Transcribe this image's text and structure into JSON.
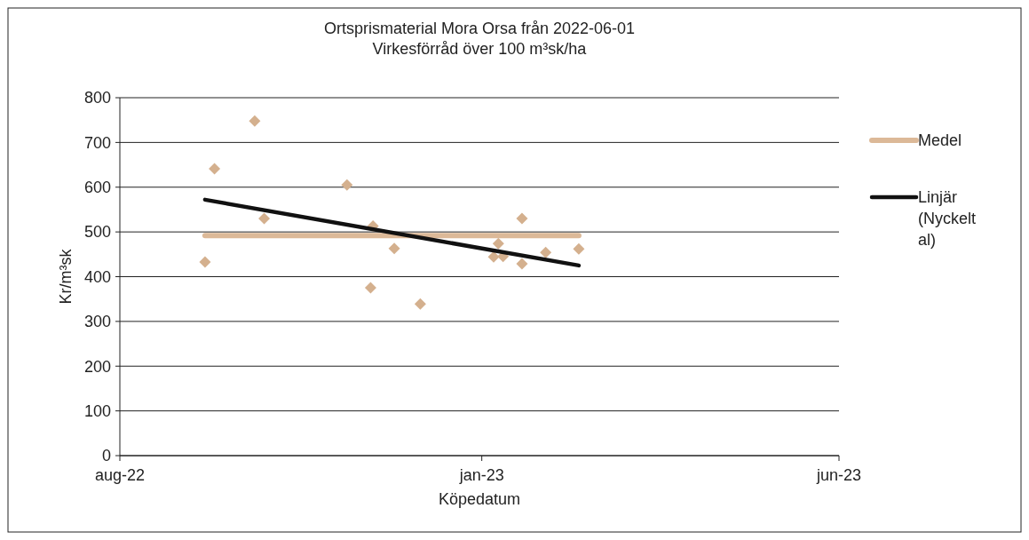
{
  "chart_data": {
    "type": "scatter",
    "title": "Ortsprismaterial Mora Orsa från 2022-06-01",
    "subtitle": "Virkesförråd över 100 m³sk/ha",
    "xlabel": "Köpedatum",
    "ylabel": "Kr/m³sk",
    "xlim": [
      "2022-08-01",
      "2023-06-01"
    ],
    "xticks": [
      {
        "value": "2022-08-01",
        "label": "aug-22"
      },
      {
        "value": "2023-01-01",
        "label": "jan-23"
      },
      {
        "value": "2023-06-01",
        "label": "jun-23"
      }
    ],
    "ylim": [
      0,
      800
    ],
    "yticks": [
      0,
      100,
      200,
      300,
      400,
      500,
      600,
      700,
      800
    ],
    "grid": "y",
    "legend": "right",
    "series": [
      {
        "marker": "diamond",
        "color": "#d4b08e",
        "x": [
          "2022-09-06",
          "2022-09-10",
          "2022-09-27",
          "2022-10-01",
          "2022-11-05",
          "2022-11-16",
          "2022-11-15",
          "2022-11-25",
          "2022-12-06",
          "2023-01-06",
          "2023-01-08",
          "2023-01-10",
          "2023-01-18",
          "2023-01-18",
          "2023-01-28",
          "2023-02-11"
        ],
        "values": [
          433,
          641,
          748,
          530,
          605,
          513,
          375,
          463,
          339,
          444,
          474,
          445,
          530,
          429,
          454,
          462
        ]
      },
      {
        "type": "line",
        "name": "Medel",
        "color": "#dcb998",
        "x": [
          "2022-09-06",
          "2023-02-11"
        ],
        "values": [
          492,
          492
        ]
      },
      {
        "type": "line",
        "name": "Linjär (Nyckeltal)",
        "color": "#111111",
        "x": [
          "2022-09-06",
          "2023-02-11"
        ],
        "values": [
          572,
          425
        ]
      }
    ]
  }
}
